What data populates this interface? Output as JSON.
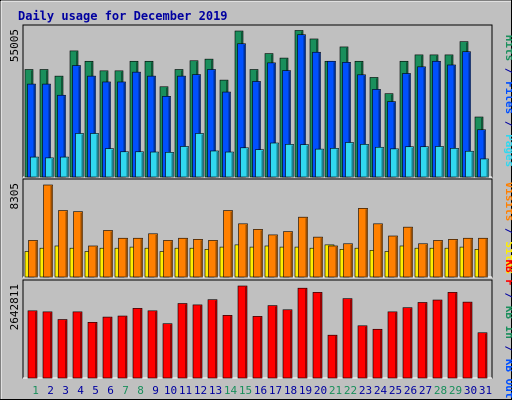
{
  "chart_data": {
    "type": "bar",
    "title": "Daily usage for December 2019",
    "colors": {
      "frame_bg": "#c0c0c0",
      "title": "#0000a0",
      "hits": "#1a8f5c",
      "files": "#0050ff",
      "pages": "#30d8f0",
      "visits": "#ff8000",
      "sites": "#ffee00",
      "kbf": "#ff0000",
      "kbin": "#1a8f5c",
      "kbout": "#0050ff",
      "weekend_day": "#1a8f5c",
      "weekday": "#0000a0"
    },
    "days": [
      "1",
      "2",
      "3",
      "4",
      "5",
      "6",
      "7",
      "8",
      "9",
      "10",
      "11",
      "12",
      "13",
      "14",
      "15",
      "16",
      "17",
      "18",
      "19",
      "20",
      "21",
      "22",
      "23",
      "24",
      "25",
      "26",
      "27",
      "28",
      "29",
      "30",
      "31"
    ],
    "weekend_days": [
      "1",
      "7",
      "8",
      "14",
      "15",
      "21",
      "22",
      "28",
      "29"
    ],
    "panels": [
      {
        "name": "usage",
        "max_label": "55005",
        "max": 55005,
        "legend": [
          {
            "text": "Hits",
            "color": "#1a8f5c"
          },
          {
            "text": " / ",
            "color": "#0000a0"
          },
          {
            "text": "Files",
            "color": "#0050ff"
          },
          {
            "text": " / ",
            "color": "#0000a0"
          },
          {
            "text": "Pages",
            "color": "#30d8f0"
          }
        ],
        "series": [
          {
            "name": "Hits",
            "color": "#1a8f5c",
            "values": [
              40500,
              40500,
              38000,
              47500,
              43600,
              40000,
              40000,
              43600,
              43600,
              34000,
              40500,
              43800,
              44400,
              36500,
              55000,
              40500,
              46500,
              44800,
              55200,
              52000,
              43600,
              49000,
              43600,
              37500,
              31400,
              43600,
              46000,
              46000,
              46000,
              51000,
              22600
            ]
          },
          {
            "name": "Files",
            "color": "#0050ff",
            "values": [
              35000,
              35000,
              30800,
              42000,
              38000,
              35800,
              35800,
              39500,
              38000,
              30400,
              38000,
              38600,
              40500,
              32000,
              50200,
              36000,
              43000,
              40100,
              53600,
              47000,
              43600,
              43200,
              38500,
              33000,
              28400,
              39000,
              41500,
              43600,
              42200,
              47200,
              17800
            ]
          },
          {
            "name": "Pages",
            "color": "#30d8f0",
            "values": [
              7500,
              7200,
              7500,
              16400,
              16400,
              10700,
              9500,
              9500,
              9400,
              9300,
              11500,
              16400,
              9800,
              9400,
              11000,
              10300,
              12800,
              12300,
              12200,
              10500,
              10800,
              13000,
              12300,
              11200,
              10600,
              11400,
              11400,
              11500,
              10800,
              9700,
              6800
            ]
          }
        ]
      },
      {
        "name": "visits",
        "max_label": "8305",
        "max": 8305,
        "legend": [
          {
            "text": "Visits",
            "color": "#ff8000"
          },
          {
            "text": " / ",
            "color": "#0000a0"
          },
          {
            "text": "Sites",
            "color": "#ffee00"
          }
        ],
        "series": [
          {
            "name": "Visits",
            "color": "#ff8000",
            "values": [
              3300,
              8305,
              6000,
              5900,
              2800,
              4200,
              3500,
              3500,
              3900,
              3300,
              3500,
              3400,
              3300,
              6000,
              4800,
              4300,
              3800,
              4100,
              5400,
              3600,
              2800,
              3000,
              6200,
              4800,
              3700,
              4500,
              3000,
              3300,
              3400,
              3500,
              3500
            ]
          },
          {
            "name": "Sites",
            "color": "#ffee00",
            "values": [
              2300,
              2600,
              2800,
              2600,
              2300,
              2600,
              2600,
              2700,
              2600,
              2300,
              2600,
              2600,
              2500,
              2700,
              2900,
              2700,
              2800,
              2700,
              2700,
              2600,
              2900,
              2500,
              2600,
              2400,
              2300,
              2800,
              2600,
              2600,
              2600,
              2700,
              2500
            ]
          }
        ]
      },
      {
        "name": "volume",
        "max_label": "2642811",
        "max": 2642811,
        "legend": [
          {
            "text": "KB F",
            "color": "#ff0000"
          },
          {
            "text": " / ",
            "color": "#0000a0"
          },
          {
            "text": "KB In",
            "color": "#1a8f5c"
          },
          {
            "text": " / ",
            "color": "#0000a0"
          },
          {
            "text": "KB Out",
            "color": "#0050ff"
          }
        ],
        "series": [
          {
            "name": "KB F",
            "color": "#ff0000",
            "values": [
              1930000,
              1900000,
              1680000,
              1900000,
              1600000,
              1750000,
              1780000,
              2000000,
              1930000,
              1560000,
              2140000,
              2100000,
              2250000,
              1800000,
              2642811,
              1770000,
              2080000,
              1960000,
              2580000,
              2460000,
              1230000,
              2280000,
              1500000,
              1400000,
              1900000,
              2020000,
              2170000,
              2240000,
              2460000,
              2180000,
              1300000
            ]
          }
        ]
      }
    ]
  }
}
